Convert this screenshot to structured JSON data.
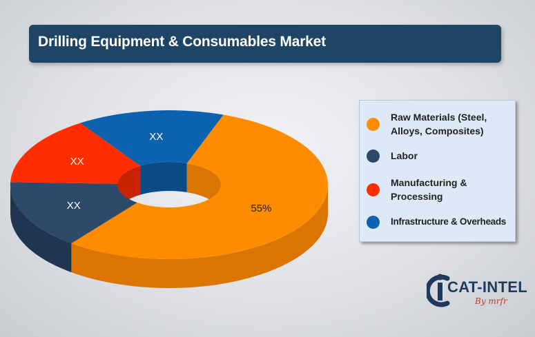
{
  "header": {
    "title": "Drilling Equipment & Consumables Market"
  },
  "chart_data": {
    "type": "pie",
    "style": "3d-donut",
    "title": "Drilling Equipment & Consumables Market",
    "categories": [
      "Raw Materials (Steel, Alloys, Composites)",
      "Labor",
      "Manufacturing & Processing",
      "Infrastructure & Overheads"
    ],
    "values": [
      55,
      15,
      15,
      15
    ],
    "data_labels": [
      "55%",
      "XX",
      "XX",
      "XX"
    ],
    "colors": [
      "#ff8c00",
      "#2e4a6b",
      "#ff2d00",
      "#0d62b0"
    ],
    "side_colors": [
      "#d97500",
      "#1f3550",
      "#c82300",
      "#094a87"
    ],
    "legend_position": "right"
  },
  "legend": {
    "items": [
      {
        "label_lines": [
          "Raw Materials (Steel,",
          "Alloys, Composites)"
        ],
        "color": "#ff8c00"
      },
      {
        "label_lines": [
          "Labor"
        ],
        "color": "#2e4a6b"
      },
      {
        "label_lines": [
          "Manufacturing &",
          "Processing"
        ],
        "color": "#ff2d00"
      },
      {
        "label_lines": [
          "Infrastructure & Overheads"
        ],
        "color": "#0d62b0"
      }
    ]
  },
  "logo": {
    "word": "CAT-INTEL",
    "sub": "By mrfr",
    "icon": "cat-intel-logo-icon"
  }
}
